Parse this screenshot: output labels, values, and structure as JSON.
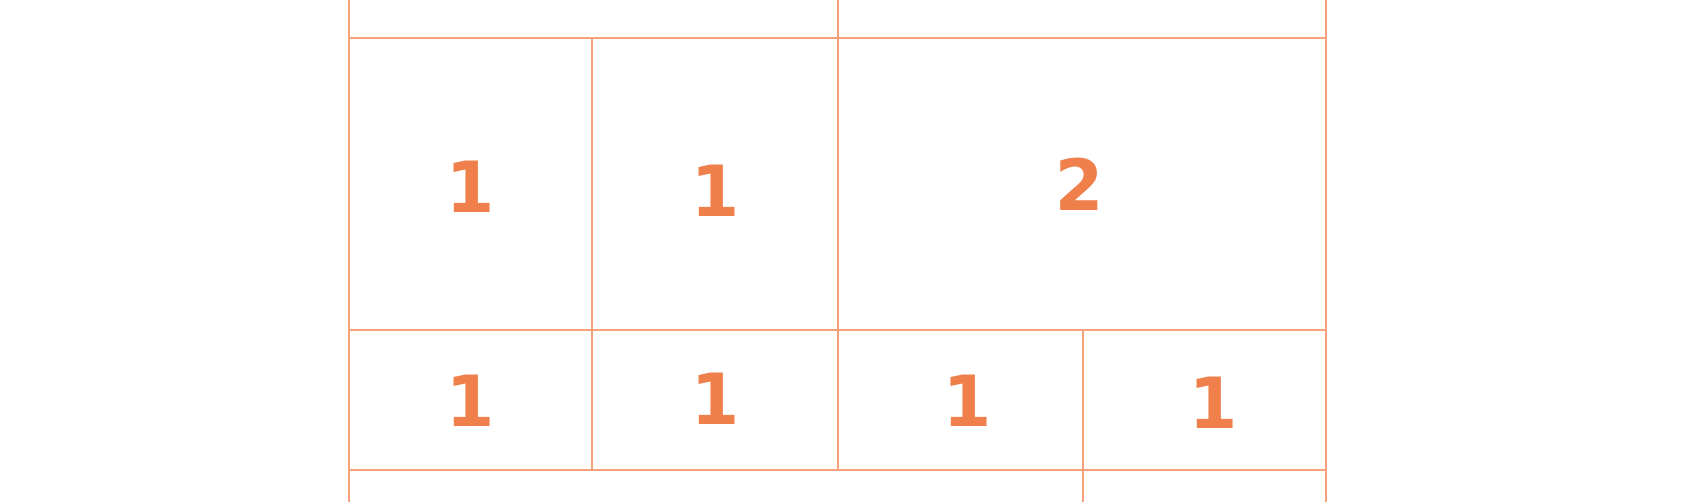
{
  "colors": {
    "line": "#f5a27a",
    "number": "#ef7f4b",
    "background": "#ffffff"
  },
  "row2": {
    "cell1": "1",
    "cell2": "1",
    "cell3": "2"
  },
  "row3": {
    "cell1": "1",
    "cell2": "1",
    "cell3": "1",
    "cell4": "1"
  }
}
